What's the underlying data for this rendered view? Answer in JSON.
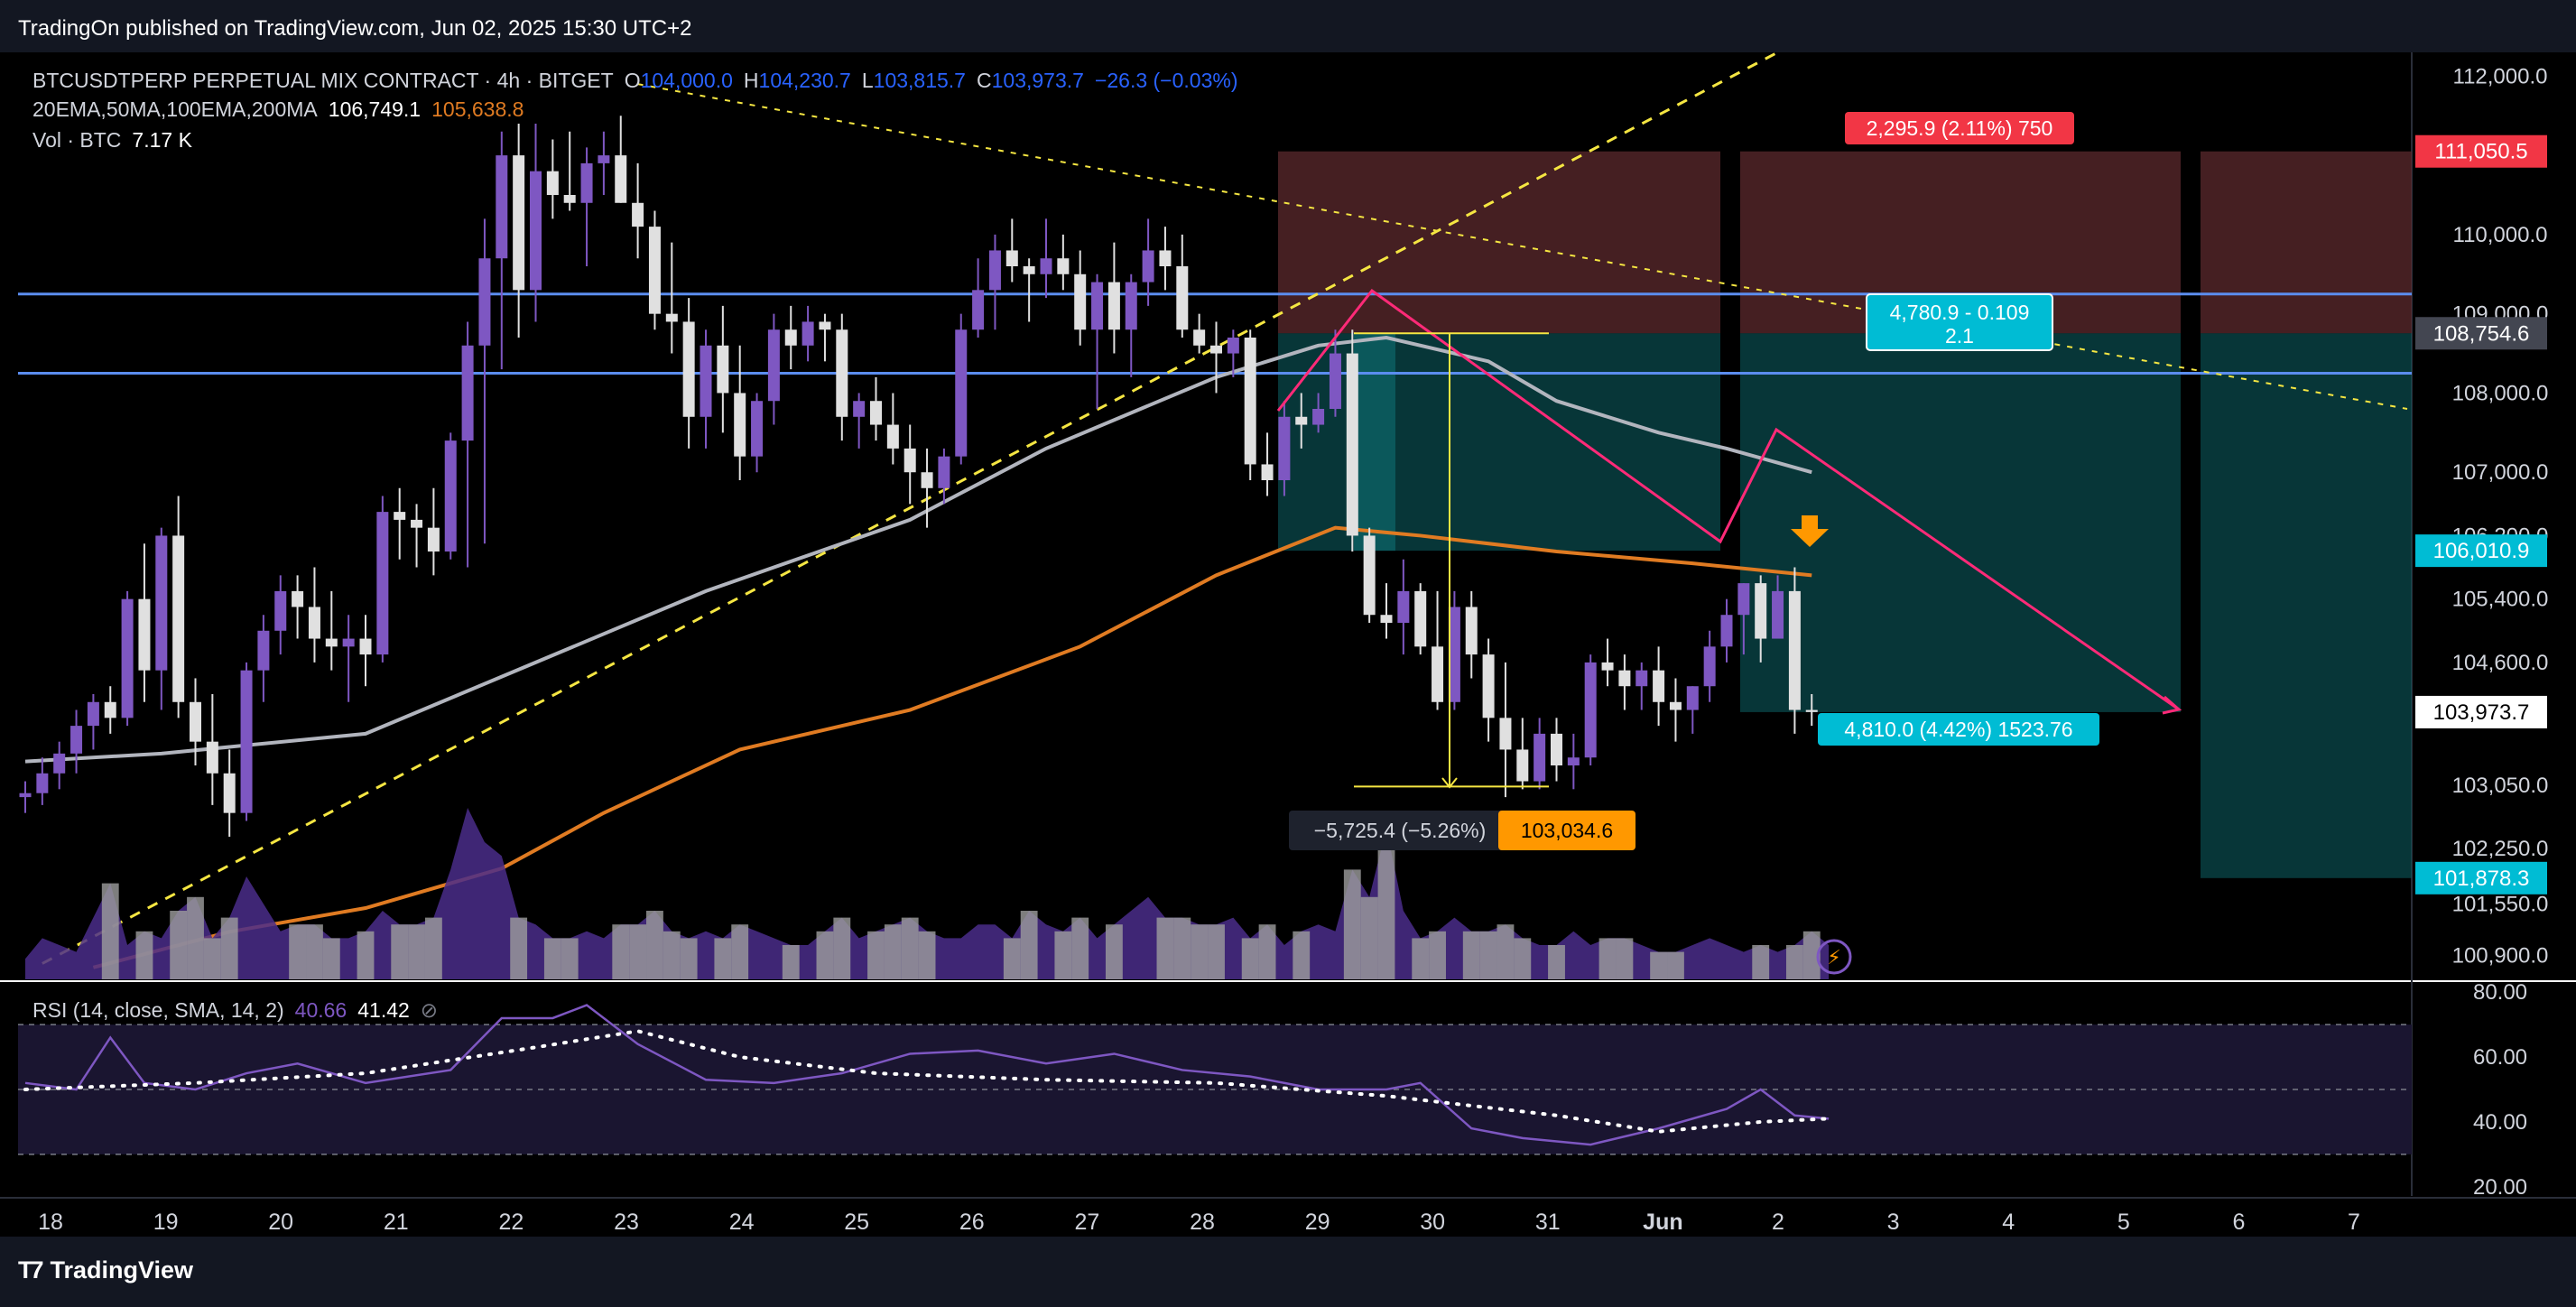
{
  "header": {
    "published_text": "TradingOn published on TradingView.com, Jun 02, 2025 15:30 UTC+2"
  },
  "legend": {
    "symbol_text": "BTCUSDTPERP PERPETUAL MIX CONTRACT · 4h · BITGET",
    "ohlc": {
      "o_label": "O",
      "o": "104,000.0",
      "h_label": "H",
      "h": "104,230.7",
      "l_label": "L",
      "l": "103,815.7",
      "c_label": "C",
      "c": "103,973.7",
      "change": "−26.3 (−0.03%)"
    },
    "ma_label": "20EMA,50MA,100EMA,200MA",
    "ma_value_1": "106,749.1",
    "ma_value_2": "105,638.8",
    "vol_label": "Vol · BTC",
    "vol_value": "7.17 K"
  },
  "rsi_legend": {
    "label": "RSI (14, close, SMA, 14, 2)",
    "value1": "40.66",
    "value2": "41.42",
    "icon": "hidden-eye-icon"
  },
  "price_axis": {
    "ticks": [
      "112,000.0",
      "110,000.0",
      "109,000.0",
      "108,000.0",
      "107,000.0",
      "106,200.0",
      "105,400.0",
      "104,600.0",
      "103,050.0",
      "102,250.0",
      "101,550.0",
      "100,900.0"
    ]
  },
  "rsi_axis": {
    "ticks": [
      "80.00",
      "60.00",
      "40.00",
      "20.00"
    ]
  },
  "price_badges": {
    "target_high": "111,050.5",
    "upper": "108,754.6",
    "entry": "106,010.9",
    "current": "103,973.7",
    "target_low": "101,878.3"
  },
  "annotations": {
    "stop_label": "2,295.9 (2.11%) 750",
    "ratio_line1": "4,780.9 - 0.109",
    "ratio_line2": "2.1",
    "target_label": "4,810.0 (4.42%) 1523.76",
    "measure_label": "−5,725.4 (−5.26%)",
    "low_label": "103,034.6"
  },
  "time_axis": {
    "labels": [
      "18",
      "19",
      "20",
      "21",
      "22",
      "23",
      "24",
      "25",
      "26",
      "27",
      "28",
      "29",
      "30",
      "31",
      "Jun",
      "2",
      "3",
      "4",
      "5",
      "6",
      "7"
    ]
  },
  "footer": {
    "brand": "TradingView"
  },
  "colors": {
    "up": "#7e57c2",
    "down": "#e0e0e0",
    "ema": "#b2b5be",
    "orange": "#e07b22",
    "pink": "#ff2a78",
    "yellow": "#f5e642",
    "blue_line": "#5b8def",
    "teal": "#0c5a5e",
    "red_zone": "#5c2a2e",
    "badge_cyan": "#00bcd4",
    "badge_red": "#f23645"
  },
  "chart_data": {
    "type": "candlestick",
    "timeframe": "4h",
    "x_labels": [
      "18",
      "19",
      "20",
      "21",
      "22",
      "23",
      "24",
      "25",
      "26",
      "27",
      "28",
      "29",
      "30",
      "31",
      "Jun",
      "2",
      "3",
      "4",
      "5",
      "6",
      "7"
    ],
    "ylim": [
      100600,
      112300
    ],
    "candles": [
      [
        102900,
        103100,
        102700,
        102950
      ],
      [
        102950,
        103400,
        102800,
        103200
      ],
      [
        103200,
        103600,
        103000,
        103450
      ],
      [
        103450,
        104000,
        103200,
        103800
      ],
      [
        103800,
        104200,
        103500,
        104100
      ],
      [
        104100,
        104300,
        103700,
        103900
      ],
      [
        103900,
        105500,
        103800,
        105400
      ],
      [
        105400,
        106100,
        104100,
        104500
      ],
      [
        104500,
        106300,
        104000,
        106200
      ],
      [
        106200,
        106700,
        103900,
        104100
      ],
      [
        104100,
        104400,
        103300,
        103600
      ],
      [
        103600,
        104200,
        102800,
        103200
      ],
      [
        103200,
        103500,
        102400,
        102700
      ],
      [
        102700,
        104600,
        102600,
        104500
      ],
      [
        104500,
        105200,
        104100,
        105000
      ],
      [
        105000,
        105700,
        104700,
        105500
      ],
      [
        105500,
        105700,
        104900,
        105300
      ],
      [
        105300,
        105800,
        104600,
        104900
      ],
      [
        104900,
        105500,
        104500,
        104800
      ],
      [
        104800,
        105200,
        104100,
        104900
      ],
      [
        104900,
        105200,
        104300,
        104700
      ],
      [
        104700,
        106700,
        104600,
        106500
      ],
      [
        106500,
        106800,
        105900,
        106400
      ],
      [
        106400,
        106600,
        105800,
        106300
      ],
      [
        106300,
        106800,
        105700,
        106000
      ],
      [
        106000,
        107500,
        105900,
        107400
      ],
      [
        107400,
        108900,
        105800,
        108600
      ],
      [
        108600,
        110200,
        106100,
        109700
      ],
      [
        109700,
        111300,
        108300,
        111000
      ],
      [
        111000,
        111400,
        108700,
        109300
      ],
      [
        109300,
        111400,
        108900,
        110800
      ],
      [
        110800,
        111200,
        110200,
        110500
      ],
      [
        110500,
        111300,
        110300,
        110400
      ],
      [
        110400,
        111100,
        109600,
        110900
      ],
      [
        110900,
        111300,
        110500,
        111000
      ],
      [
        111000,
        111500,
        110400,
        110400
      ],
      [
        110400,
        110900,
        109700,
        110100
      ],
      [
        110100,
        110300,
        108800,
        109000
      ],
      [
        109000,
        109900,
        108500,
        108900
      ],
      [
        108900,
        109200,
        107300,
        107700
      ],
      [
        107700,
        108800,
        107300,
        108600
      ],
      [
        108600,
        109100,
        107500,
        108000
      ],
      [
        108000,
        108600,
        106900,
        107200
      ],
      [
        107200,
        108000,
        107000,
        107900
      ],
      [
        107900,
        109000,
        107600,
        108800
      ],
      [
        108800,
        109100,
        108300,
        108600
      ],
      [
        108600,
        109100,
        108400,
        108900
      ],
      [
        108900,
        109000,
        108400,
        108800
      ],
      [
        108800,
        109000,
        107400,
        107700
      ],
      [
        107700,
        108000,
        107300,
        107900
      ],
      [
        107900,
        108200,
        107400,
        107600
      ],
      [
        107600,
        108000,
        107100,
        107300
      ],
      [
        107300,
        107600,
        106600,
        107000
      ],
      [
        107000,
        107300,
        106300,
        106800
      ],
      [
        106800,
        107300,
        106600,
        107200
      ],
      [
        107200,
        109000,
        107100,
        108800
      ],
      [
        108800,
        109700,
        108700,
        109300
      ],
      [
        109300,
        110000,
        108800,
        109800
      ],
      [
        109800,
        110200,
        109400,
        109600
      ],
      [
        109600,
        109700,
        108900,
        109500
      ],
      [
        109500,
        110200,
        109200,
        109700
      ],
      [
        109700,
        110000,
        109300,
        109500
      ],
      [
        109500,
        109800,
        108600,
        108800
      ],
      [
        108800,
        109500,
        107800,
        109400
      ],
      [
        109400,
        109900,
        108500,
        108800
      ],
      [
        108800,
        109500,
        108200,
        109400
      ],
      [
        109400,
        110200,
        109100,
        109800
      ],
      [
        109800,
        110100,
        109300,
        109600
      ],
      [
        109600,
        110000,
        108700,
        108800
      ],
      [
        108800,
        109000,
        108500,
        108600
      ],
      [
        108600,
        108900,
        108000,
        108500
      ],
      [
        108500,
        108800,
        108200,
        108700
      ],
      [
        108700,
        108800,
        106900,
        107100
      ],
      [
        107100,
        107500,
        106700,
        106900
      ],
      [
        106900,
        107900,
        106700,
        107700
      ],
      [
        107700,
        108000,
        107300,
        107600
      ],
      [
        107600,
        108000,
        107500,
        107800
      ],
      [
        107800,
        108800,
        107700,
        108500
      ],
      [
        108500,
        108800,
        106000,
        106200
      ],
      [
        106200,
        106300,
        105100,
        105200
      ],
      [
        105200,
        105600,
        104900,
        105100
      ],
      [
        105100,
        105900,
        104700,
        105500
      ],
      [
        105500,
        105600,
        104700,
        104800
      ],
      [
        104800,
        105500,
        104000,
        104100
      ],
      [
        104100,
        105500,
        104000,
        105300
      ],
      [
        105300,
        105500,
        104400,
        104700
      ],
      [
        104700,
        104900,
        103600,
        103900
      ],
      [
        103900,
        104600,
        102900,
        103500
      ],
      [
        103500,
        103900,
        103000,
        103100
      ],
      [
        103100,
        103900,
        103000,
        103700
      ],
      [
        103700,
        103900,
        103100,
        103300
      ],
      [
        103300,
        103700,
        103000,
        103400
      ],
      [
        103400,
        104700,
        103300,
        104600
      ],
      [
        104600,
        104900,
        104300,
        104500
      ],
      [
        104500,
        104700,
        104000,
        104300
      ],
      [
        104300,
        104600,
        104000,
        104500
      ],
      [
        104500,
        104800,
        103800,
        104100
      ],
      [
        104100,
        104400,
        103600,
        104000
      ],
      [
        104000,
        104300,
        103700,
        104300
      ],
      [
        104300,
        105000,
        104100,
        104800
      ],
      [
        104800,
        105400,
        104600,
        105200
      ],
      [
        105200,
        105600,
        104700,
        105600
      ],
      [
        105600,
        105700,
        104600,
        104900
      ],
      [
        104900,
        105700,
        104900,
        105500
      ],
      [
        105500,
        105800,
        103700,
        104000
      ],
      [
        104000,
        104200,
        103800,
        103974
      ]
    ],
    "volume": [
      3,
      6,
      5,
      4,
      9,
      14,
      5,
      7,
      6,
      10,
      12,
      6,
      9,
      15,
      11,
      7,
      8,
      8,
      6,
      6,
      7,
      10,
      8,
      8,
      9,
      16,
      25,
      20,
      18,
      9,
      8,
      6,
      6,
      7,
      6,
      8,
      8,
      10,
      7,
      6,
      7,
      6,
      8,
      7,
      6,
      5,
      5,
      7,
      9,
      6,
      7,
      8,
      9,
      7,
      6,
      6,
      8,
      8,
      6,
      10,
      8,
      7,
      9,
      6,
      8,
      10,
      12,
      9,
      9,
      8,
      8,
      9,
      6,
      8,
      5,
      7,
      8,
      7,
      16,
      12,
      22,
      10,
      6,
      7,
      9,
      7,
      7,
      8,
      6,
      5,
      5,
      7,
      5,
      6,
      6,
      5,
      4,
      4,
      5,
      6,
      5,
      4,
      5,
      4,
      5,
      7,
      5
    ],
    "ema_gray": [
      [
        0,
        103350
      ],
      [
        8,
        103450
      ],
      [
        20,
        103700
      ],
      [
        30,
        104600
      ],
      [
        40,
        105500
      ],
      [
        52,
        106400
      ],
      [
        60,
        107300
      ],
      [
        70,
        108200
      ],
      [
        76,
        108600
      ],
      [
        80,
        108700
      ],
      [
        86,
        108400
      ],
      [
        90,
        107900
      ],
      [
        96,
        107500
      ],
      [
        100,
        107300
      ],
      [
        105,
        107000
      ]
    ],
    "ema_orange": [
      [
        4,
        100750
      ],
      [
        12,
        101200
      ],
      [
        20,
        101500
      ],
      [
        28,
        102000
      ],
      [
        34,
        102700
      ],
      [
        42,
        103500
      ],
      [
        52,
        104000
      ],
      [
        62,
        104800
      ],
      [
        70,
        105700
      ],
      [
        77,
        106300
      ],
      [
        82,
        106200
      ],
      [
        90,
        106000
      ],
      [
        98,
        105850
      ],
      [
        105,
        105700
      ]
    ],
    "horizontal_levels": [
      109250,
      108250
    ],
    "trendline_support": [
      [
        1,
        100800
      ],
      [
        103,
        112300
      ]
    ],
    "trendline_resistance": [
      [
        36,
        111900
      ],
      [
        140,
        107800
      ]
    ],
    "rsi": [
      [
        0,
        52
      ],
      [
        3,
        50
      ],
      [
        5,
        66
      ],
      [
        7,
        52
      ],
      [
        10,
        50
      ],
      [
        13,
        55
      ],
      [
        16,
        58
      ],
      [
        20,
        52
      ],
      [
        25,
        56
      ],
      [
        28,
        72
      ],
      [
        31,
        72
      ],
      [
        33,
        76
      ],
      [
        36,
        64
      ],
      [
        40,
        53
      ],
      [
        44,
        52
      ],
      [
        48,
        55
      ],
      [
        52,
        61
      ],
      [
        56,
        62
      ],
      [
        60,
        58
      ],
      [
        64,
        61
      ],
      [
        68,
        56
      ],
      [
        72,
        54
      ],
      [
        76,
        50
      ],
      [
        80,
        50
      ],
      [
        82,
        52
      ],
      [
        85,
        38
      ],
      [
        88,
        35
      ],
      [
        92,
        33
      ],
      [
        96,
        38
      ],
      [
        100,
        44
      ],
      [
        102,
        50
      ],
      [
        104,
        42
      ],
      [
        106,
        41
      ]
    ],
    "rsi_sma": [
      [
        0,
        50
      ],
      [
        10,
        52
      ],
      [
        20,
        55
      ],
      [
        30,
        63
      ],
      [
        36,
        68
      ],
      [
        42,
        60
      ],
      [
        50,
        55
      ],
      [
        60,
        53
      ],
      [
        70,
        52
      ],
      [
        80,
        48
      ],
      [
        90,
        42
      ],
      [
        96,
        37
      ],
      [
        102,
        40
      ],
      [
        106,
        41
      ]
    ]
  }
}
